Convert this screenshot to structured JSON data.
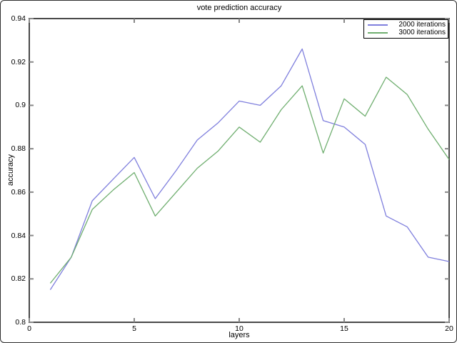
{
  "window": {
    "background": "#ffffff",
    "frame_color": "#4a4a4a",
    "tick_color": "#888888"
  },
  "chart_data": {
    "type": "line",
    "title": "vote prediction accuracy",
    "xlabel": "layers",
    "ylabel": "accuracy",
    "xlim": [
      0,
      20
    ],
    "ylim": [
      0.8,
      0.94
    ],
    "grid": false,
    "legend_position": "top-right",
    "x_ticks": [
      0,
      5,
      10,
      15,
      20
    ],
    "x_tick_labels": [
      "0",
      "5",
      "10",
      "15",
      "20"
    ],
    "y_ticks": [
      0.8,
      0.82,
      0.84,
      0.86,
      0.88,
      0.9,
      0.92,
      0.94
    ],
    "y_tick_labels": [
      "0.8",
      "0.82",
      "0.84",
      "0.86",
      "0.88",
      "0.9",
      "0.92",
      "0.94"
    ],
    "x": [
      1,
      2,
      3,
      4,
      5,
      6,
      7,
      8,
      9,
      10,
      11,
      12,
      13,
      14,
      15,
      16,
      17,
      18,
      19,
      20
    ],
    "series": [
      {
        "name": "2000 iterations",
        "color": "#7f7fdd",
        "values": [
          0.815,
          0.83,
          0.856,
          0.866,
          0.876,
          0.857,
          0.87,
          0.884,
          0.892,
          0.902,
          0.9,
          0.909,
          0.926,
          0.893,
          0.89,
          0.882,
          0.849,
          0.844,
          0.83,
          0.828
        ]
      },
      {
        "name": "3000 iterations",
        "color": "#6fae6f",
        "values": [
          0.818,
          0.83,
          0.852,
          0.861,
          0.869,
          0.849,
          0.86,
          0.871,
          0.879,
          0.89,
          0.883,
          0.898,
          0.909,
          0.878,
          0.903,
          0.895,
          0.913,
          0.905,
          0.889,
          0.875
        ]
      }
    ]
  }
}
